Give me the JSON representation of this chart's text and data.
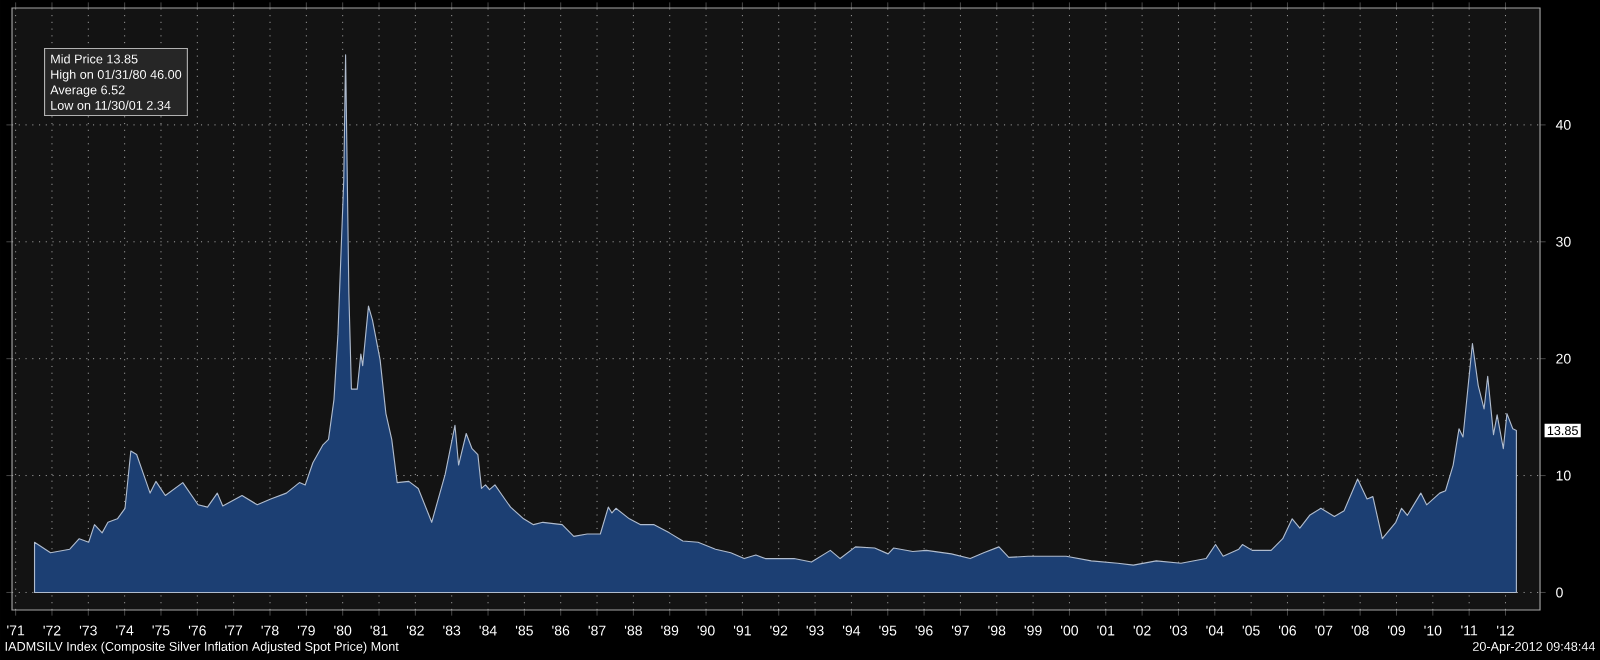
{
  "chart_data": {
    "type": "area",
    "x": [
      1971.52,
      1971.96,
      1972.49,
      1972.75,
      1973.01,
      1973.17,
      1973.38,
      1973.54,
      1973.8,
      1974.01,
      1974.17,
      1974.33,
      1974.6,
      1974.7,
      1974.86,
      1975.12,
      1975.6,
      1976.02,
      1976.28,
      1976.55,
      1976.7,
      1977.23,
      1977.65,
      1978.02,
      1978.45,
      1978.81,
      1978.97,
      1979.18,
      1979.45,
      1979.61,
      1979.76,
      1979.87,
      1980.03,
      1980.08,
      1980.17,
      1980.24,
      1980.4,
      1980.5,
      1980.55,
      1980.71,
      1980.82,
      1981.03,
      1981.19,
      1981.35,
      1981.5,
      1981.82,
      1982.08,
      1982.45,
      1982.82,
      1983.09,
      1983.19,
      1983.4,
      1983.56,
      1983.72,
      1983.82,
      1983.93,
      1984.04,
      1984.19,
      1984.46,
      1984.62,
      1984.98,
      1985.25,
      1985.51,
      1986.04,
      1986.36,
      1986.73,
      1987.09,
      1987.31,
      1987.41,
      1987.52,
      1987.89,
      1988.2,
      1988.57,
      1988.99,
      1989.36,
      1989.78,
      1990.26,
      1990.68,
      1991.05,
      1991.37,
      1991.63,
      1992.42,
      1992.9,
      1993.42,
      1993.69,
      1994.11,
      1994.64,
      1995.01,
      1995.16,
      1995.69,
      1996.06,
      1996.75,
      1997.27,
      1997.64,
      1998.06,
      1998.33,
      1998.86,
      1999.38,
      1999.91,
      2000.6,
      2001.33,
      2001.76,
      2002.39,
      2003.07,
      2003.76,
      2004.02,
      2004.23,
      2004.66,
      2004.76,
      2005.03,
      2005.55,
      2005.87,
      2006.13,
      2006.34,
      2006.61,
      2006.92,
      2007.29,
      2007.56,
      2007.93,
      2008.19,
      2008.35,
      2008.61,
      2008.98,
      2009.14,
      2009.3,
      2009.67,
      2009.83,
      2010.19,
      2010.35,
      2010.56,
      2010.72,
      2010.83,
      2011.09,
      2011.25,
      2011.41,
      2011.51,
      2011.67,
      2011.77,
      2011.94,
      2012.04,
      2012.2,
      2012.3
    ],
    "series": [
      {
        "color": "#1c3f73",
        "values": [
          4.3,
          3.4,
          3.7,
          4.6,
          4.3,
          5.8,
          5.1,
          6.0,
          6.3,
          7.2,
          12.1,
          11.8,
          9.4,
          8.5,
          9.5,
          8.3,
          9.4,
          7.5,
          7.3,
          8.5,
          7.4,
          8.3,
          7.5,
          8.0,
          8.5,
          9.4,
          9.2,
          11.1,
          12.6,
          13.1,
          16.5,
          22.1,
          35.3,
          46.0,
          25.6,
          17.4,
          17.4,
          20.4,
          19.4,
          24.5,
          23.3,
          19.9,
          15.3,
          13.1,
          9.4,
          9.5,
          8.9,
          6.0,
          10.1,
          14.3,
          10.9,
          13.6,
          12.3,
          11.8,
          8.9,
          9.2,
          8.8,
          9.2,
          8.0,
          7.3,
          6.3,
          5.8,
          6.0,
          5.8,
          4.8,
          5.0,
          5.0,
          7.3,
          6.8,
          7.2,
          6.3,
          5.8,
          5.8,
          5.1,
          4.4,
          4.3,
          3.7,
          3.4,
          2.9,
          3.2,
          2.9,
          2.9,
          2.6,
          3.6,
          2.9,
          3.9,
          3.8,
          3.3,
          3.8,
          3.5,
          3.6,
          3.3,
          2.9,
          3.4,
          3.9,
          3.0,
          3.1,
          3.1,
          3.1,
          2.7,
          2.5,
          2.34,
          2.7,
          2.5,
          2.9,
          4.1,
          3.1,
          3.7,
          4.1,
          3.6,
          3.6,
          4.6,
          6.3,
          5.5,
          6.6,
          7.2,
          6.5,
          7.0,
          9.7,
          8.0,
          8.2,
          4.6,
          6.0,
          7.2,
          6.6,
          8.5,
          7.5,
          8.5,
          8.7,
          10.9,
          14.0,
          13.3,
          21.3,
          17.7,
          15.7,
          18.5,
          13.5,
          15.2,
          12.3,
          15.3,
          14.0,
          13.85
        ]
      }
    ],
    "xlim": [
      1970.9,
      2012.95
    ],
    "ylim": [
      -1.5,
      50
    ],
    "yticks": [
      0,
      10,
      20,
      30,
      40
    ],
    "xticks": [
      {
        "value": 1971,
        "label": "'71"
      },
      {
        "value": 1972,
        "label": "'72"
      },
      {
        "value": 1973,
        "label": "'73"
      },
      {
        "value": 1974,
        "label": "'74"
      },
      {
        "value": 1975,
        "label": "'75"
      },
      {
        "value": 1976,
        "label": "'76"
      },
      {
        "value": 1977,
        "label": "'77"
      },
      {
        "value": 1978,
        "label": "'78"
      },
      {
        "value": 1979,
        "label": "'79"
      },
      {
        "value": 1980,
        "label": "'80"
      },
      {
        "value": 1981,
        "label": "'81"
      },
      {
        "value": 1982,
        "label": "'82"
      },
      {
        "value": 1983,
        "label": "'83"
      },
      {
        "value": 1984,
        "label": "'84"
      },
      {
        "value": 1985,
        "label": "'85"
      },
      {
        "value": 1986,
        "label": "'86"
      },
      {
        "value": 1987,
        "label": "'87"
      },
      {
        "value": 1988,
        "label": "'88"
      },
      {
        "value": 1989,
        "label": "'89"
      },
      {
        "value": 1990,
        "label": "'90"
      },
      {
        "value": 1991,
        "label": "'91"
      },
      {
        "value": 1992,
        "label": "'92"
      },
      {
        "value": 1993,
        "label": "'93"
      },
      {
        "value": 1994,
        "label": "'94"
      },
      {
        "value": 1995,
        "label": "'95"
      },
      {
        "value": 1996,
        "label": "'96"
      },
      {
        "value": 1997,
        "label": "'97"
      },
      {
        "value": 1998,
        "label": "'98"
      },
      {
        "value": 1999,
        "label": "'99"
      },
      {
        "value": 2000,
        "label": "'00"
      },
      {
        "value": 2001,
        "label": "'01"
      },
      {
        "value": 2002,
        "label": "'02"
      },
      {
        "value": 2003,
        "label": "'03"
      },
      {
        "value": 2004,
        "label": "'04"
      },
      {
        "value": 2005,
        "label": "'05"
      },
      {
        "value": 2006,
        "label": "'06"
      },
      {
        "value": 2007,
        "label": "'07"
      },
      {
        "value": 2008,
        "label": "'08"
      },
      {
        "value": 2009,
        "label": "'09"
      },
      {
        "value": 2010,
        "label": "'10"
      },
      {
        "value": 2011,
        "label": "'11"
      },
      {
        "value": 2012,
        "label": "'12"
      }
    ],
    "grid": true,
    "annotations": [
      "Mid Price 13.85",
      "High on 01/31/80 46.00",
      "Average 6.52",
      "Low on 11/30/01 2.34",
      "IADMSILV Index (Composite Silver Inflation Adjusted Spot Price) Mont",
      "20-Apr-2012 09:48:44",
      {
        "text": "13.85",
        "y": 13.85
      }
    ]
  }
}
